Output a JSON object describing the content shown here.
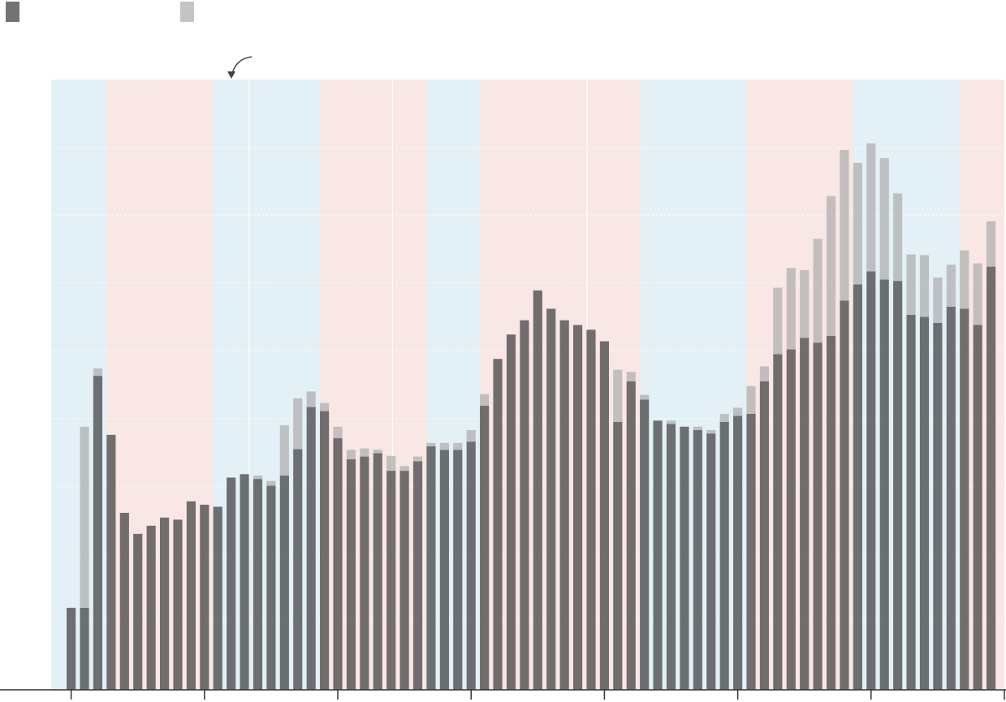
{
  "chart_data": {
    "type": "stacked-bar",
    "x": [
      0,
      1,
      2,
      3,
      4,
      5,
      6,
      7,
      8,
      9,
      10,
      11,
      12,
      13,
      14,
      15,
      16,
      17,
      18,
      19,
      20,
      21,
      22,
      23,
      24,
      25,
      26,
      27,
      28,
      29,
      30,
      31,
      32,
      33,
      34,
      35,
      36,
      37,
      38,
      39,
      40,
      41,
      42,
      43,
      44,
      45,
      46,
      47,
      48,
      49,
      50,
      51,
      52,
      53,
      54,
      55,
      56,
      57,
      58,
      59,
      60,
      61,
      62,
      63,
      64,
      65,
      66,
      67,
      68,
      69
    ],
    "series": [
      {
        "color": "#444444",
        "values": [
          1.21,
          1.21,
          4.63,
          3.76,
          2.61,
          2.3,
          2.42,
          2.54,
          2.51,
          2.78,
          2.73,
          2.7,
          3.13,
          3.18,
          3.11,
          3.01,
          3.16,
          3.55,
          4.17,
          4.11,
          3.71,
          3.4,
          3.44,
          3.49,
          3.23,
          3.23,
          3.37,
          3.59,
          3.54,
          3.54,
          3.66,
          4.19,
          4.88,
          5.24,
          5.45,
          5.89,
          5.62,
          5.45,
          5.38,
          5.31,
          5.14,
          3.95,
          4.55,
          4.28,
          3.97,
          3.92,
          3.88,
          3.83,
          3.78,
          3.95,
          4.04,
          4.07,
          4.55,
          4.95,
          5.02,
          5.19,
          5.12,
          5.22,
          5.74,
          5.98,
          6.17,
          6.05,
          6.03,
          5.53,
          5.5,
          5.41,
          5.65,
          5.62,
          5.38,
          6.24
        ]
      },
      {
        "color": "#b0b0b0",
        "values": [
          0,
          2.67,
          0.11,
          0,
          0,
          0,
          0,
          0,
          0,
          0,
          0,
          0,
          0,
          0,
          0.05,
          0.07,
          0.74,
          0.75,
          0.23,
          0.12,
          0.17,
          0.14,
          0.12,
          0.05,
          0.22,
          0.07,
          0.07,
          0.05,
          0.1,
          0.1,
          0.17,
          0.17,
          0,
          0,
          0,
          0,
          0,
          0,
          0,
          0,
          0,
          0.77,
          0.14,
          0.07,
          0,
          0.05,
          0,
          0.05,
          0.05,
          0.12,
          0.12,
          0.41,
          0.22,
          0.98,
          1.2,
          1.0,
          1.53,
          2.06,
          2.22,
          1.79,
          1.89,
          1.79,
          1.29,
          0.89,
          0.91,
          0.67,
          0.62,
          0.86,
          0.91,
          0.67
        ]
      }
    ],
    "xlim": [
      -1.5,
      70
    ],
    "xticks": [
      0,
      10,
      20,
      30,
      40,
      50,
      60,
      70
    ],
    "ylim": [
      0,
      9
    ],
    "yticks": [
      0,
      1,
      2,
      3,
      4,
      5,
      6,
      7,
      8,
      9
    ],
    "grid": true,
    "bands": [
      {
        "from": -1.5,
        "to": 2.7,
        "color": "#e3f0f6"
      },
      {
        "from": 2.7,
        "to": 10.7,
        "color": "#f8e7e4"
      },
      {
        "from": 10.7,
        "to": 18.7,
        "color": "#e3f0f6"
      },
      {
        "from": 18.7,
        "to": 26.7,
        "color": "#f8e7e4"
      },
      {
        "from": 26.7,
        "to": 30.7,
        "color": "#e3f0f6"
      },
      {
        "from": 30.7,
        "to": 42.7,
        "color": "#f8e7e4"
      },
      {
        "from": 42.7,
        "to": 50.7,
        "color": "#e3f0f6"
      },
      {
        "from": 50.7,
        "to": 58.7,
        "color": "#f8e7e4"
      },
      {
        "from": 58.7,
        "to": 66.7,
        "color": "#e3f0f6"
      },
      {
        "from": 66.7,
        "to": 70,
        "color": "#f8e7e4"
      }
    ],
    "dividers": [
      13.35,
      24.1,
      38.7
    ]
  }
}
